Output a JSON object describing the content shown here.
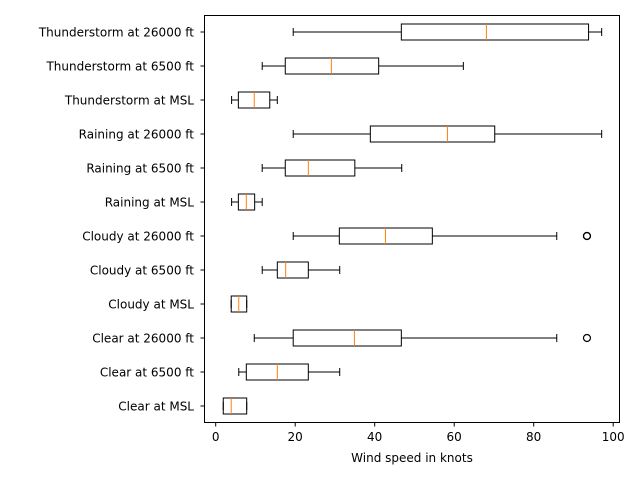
{
  "chart_data": {
    "type": "boxplot",
    "orientation": "horizontal",
    "title": "",
    "xlabel": "Wind speed in knots",
    "ylabel": "",
    "xlim": [
      -3,
      101
    ],
    "xticks": [
      0,
      20,
      40,
      60,
      80,
      100
    ],
    "grid": false,
    "legend": null,
    "colors": {
      "box": "#000000",
      "median": "#ff7f0e",
      "outlier": "#000000"
    },
    "categories": [
      "Thunderstorm at 26000 ft",
      "Thunderstorm at 6500 ft",
      "Thunderstorm at MSL",
      "Raining at 26000 ft",
      "Raining at 6500 ft",
      "Raining at MSL",
      "Cloudy at 26000 ft",
      "Cloudy at 6500 ft",
      "Cloudy at MSL",
      "Clear at 26000 ft",
      "Clear at 6500 ft",
      "Clear at MSL"
    ],
    "boxes": [
      {
        "label": "Thunderstorm at 26000 ft",
        "whislo": 19.5,
        "q1": 46.7,
        "med": 68.1,
        "q3": 93.8,
        "whishi": 97.1,
        "fliers": []
      },
      {
        "label": "Thunderstorm at 6500 ft",
        "whislo": 11.7,
        "q1": 17.5,
        "med": 29.1,
        "q3": 41.0,
        "whishi": 62.3,
        "fliers": []
      },
      {
        "label": "Thunderstorm at MSL",
        "whislo": 4.0,
        "q1": 5.7,
        "med": 9.7,
        "q3": 13.6,
        "whishi": 15.5,
        "fliers": []
      },
      {
        "label": "Raining at 26000 ft",
        "whislo": 19.5,
        "q1": 38.9,
        "med": 58.3,
        "q3": 70.2,
        "whishi": 97.1,
        "fliers": []
      },
      {
        "label": "Raining at 6500 ft",
        "whislo": 11.7,
        "q1": 17.5,
        "med": 23.3,
        "q3": 35.0,
        "whishi": 46.8,
        "fliers": []
      },
      {
        "label": "Raining at MSL",
        "whislo": 4.0,
        "q1": 5.7,
        "med": 7.7,
        "q3": 9.8,
        "whishi": 11.7,
        "fliers": []
      },
      {
        "label": "Cloudy at 26000 ft",
        "whislo": 19.5,
        "q1": 31.1,
        "med": 42.7,
        "q3": 54.5,
        "whishi": 85.8,
        "fliers": [
          93.4,
          93.4
        ]
      },
      {
        "label": "Cloudy at 6500 ft",
        "whislo": 11.7,
        "q1": 15.5,
        "med": 17.6,
        "q3": 23.3,
        "whishi": 31.2,
        "fliers": []
      },
      {
        "label": "Cloudy at MSL",
        "whislo": 3.9,
        "q1": 3.9,
        "med": 5.8,
        "q3": 7.8,
        "whishi": 7.8,
        "fliers": []
      },
      {
        "label": "Clear at 26000 ft",
        "whislo": 9.7,
        "q1": 19.5,
        "med": 34.9,
        "q3": 46.7,
        "whishi": 85.8,
        "fliers": [
          93.4
        ]
      },
      {
        "label": "Clear at 6500 ft",
        "whislo": 5.8,
        "q1": 7.7,
        "med": 15.5,
        "q3": 23.3,
        "whishi": 31.2,
        "fliers": []
      },
      {
        "label": "Clear at MSL",
        "whislo": 1.9,
        "q1": 1.9,
        "med": 3.9,
        "q3": 7.8,
        "whishi": 7.8,
        "fliers": []
      }
    ]
  }
}
